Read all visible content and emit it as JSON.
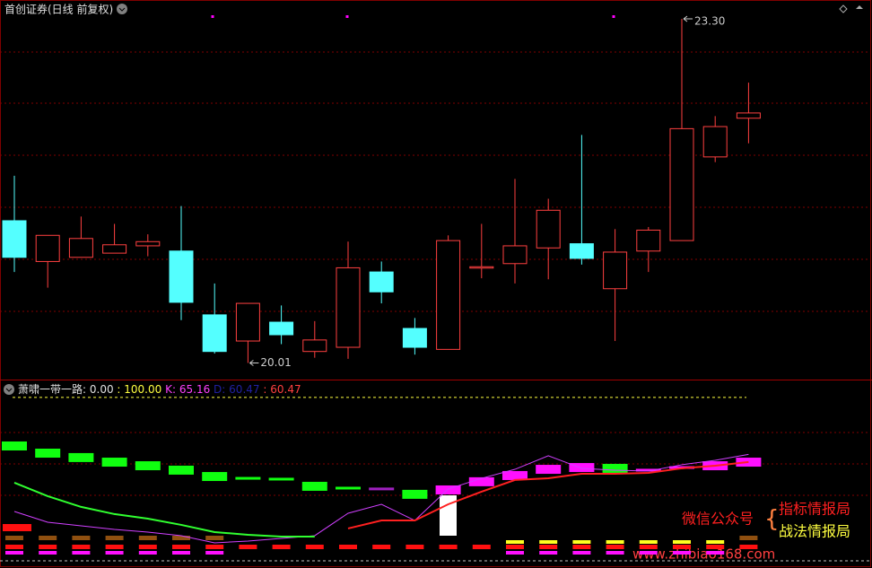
{
  "chart_data": [
    {
      "type": "candlestick",
      "title": "首创证券(日线 前复权)",
      "ylim": [
        19.86,
        23.48
      ],
      "up_color": "#ff4040",
      "down_color": "#54ffff",
      "open": [
        21.37,
        20.98,
        21.02,
        21.06,
        21.13,
        21.08,
        20.47,
        20.22,
        20.4,
        20.12,
        20.16,
        20.88,
        20.34,
        20.14,
        20.92,
        20.96,
        21.11,
        21.15,
        20.72,
        21.08,
        21.18,
        21.98,
        22.35
      ],
      "high": [
        21.8,
        21.23,
        21.41,
        21.34,
        21.24,
        21.51,
        20.77,
        20.58,
        20.56,
        20.41,
        21.17,
        20.98,
        20.44,
        21.23,
        21.34,
        21.77,
        21.58,
        22.19,
        21.29,
        21.31,
        23.3,
        22.37,
        22.69
      ],
      "low": [
        20.88,
        20.73,
        21.02,
        21.06,
        21.03,
        20.42,
        20.1,
        20.01,
        20.19,
        20.06,
        20.05,
        20.58,
        20.09,
        20.14,
        20.82,
        20.77,
        20.81,
        20.95,
        20.22,
        20.88,
        21.18,
        21.93,
        22.11
      ],
      "close": [
        21.02,
        21.23,
        21.2,
        21.14,
        21.17,
        20.59,
        20.12,
        20.58,
        20.28,
        20.23,
        20.92,
        20.69,
        20.16,
        21.18,
        20.93,
        21.13,
        21.47,
        21.01,
        21.07,
        21.28,
        22.25,
        22.27,
        22.4
      ],
      "annotations": [
        {
          "value": 23.3,
          "label": "23.30"
        },
        {
          "value": 20.01,
          "label": "20.01"
        }
      ]
    },
    {
      "type": "line",
      "title": "萧啸一带一路",
      "ylim": [
        -4.4,
        110.4
      ],
      "header": [
        {
          "value": 0,
          "label": ": 0.00"
        },
        {
          "value": 100,
          "label": ": 100.00"
        }
      ],
      "readouts": [
        {
          "name": "K:",
          "value": 65.16,
          "color": "#ff40ff"
        },
        {
          "name": "D:",
          "value": 60.47,
          "color": "#2020a0"
        },
        {
          "name": ":",
          "value": 60.47,
          "color": "#ff4040"
        }
      ],
      "series": [
        {
          "name": "K",
          "color": "#d040ff",
          "values": [
            30.2,
            23.6,
            21.4,
            19.2,
            17.6,
            15.4,
            11.0,
            12.1,
            13.7,
            15.4,
            29.1,
            34.6,
            24.7,
            44.0,
            50.5,
            56.0,
            64.3,
            56.6,
            55.5,
            54.9,
            58.8,
            61.5,
            65.16
          ]
        },
        {
          "name": "D",
          "color": "#ff2020",
          "values": [
            null,
            null,
            null,
            null,
            null,
            null,
            null,
            null,
            null,
            null,
            19.8,
            24.7,
            24.7,
            34.6,
            42.3,
            49.5,
            50.5,
            53.3,
            53.3,
            53.8,
            56.6,
            58.2,
            60.47
          ]
        },
        {
          "name": "G",
          "color": "#30ff30",
          "values": [
            47.8,
            39.6,
            33.0,
            28.6,
            25.8,
            22.0,
            17.6,
            15.9,
            14.8,
            14.8,
            null,
            null,
            null,
            null,
            null,
            null,
            null,
            null,
            null,
            null,
            null,
            null,
            null
          ]
        }
      ],
      "blocks": {
        "values": [
          70.3,
          65.9,
          63.2,
          60.4,
          58.2,
          55.5,
          51.6,
          50.5,
          50.0,
          45.6,
          44.5,
          44.0,
          40.7,
          43.4,
          48.4,
          52.2,
          56.0,
          57.1,
          56.6,
          55.5,
          57.1,
          58.2,
          60.4
        ],
        "colors": [
          "#10ff10",
          "#10ff10",
          "#10ff10",
          "#10ff10",
          "#10ff10",
          "#10ff10",
          "#10ff10",
          "#10ff10",
          "#10ff10",
          "#10ff10",
          "#10ff10",
          "#a020c0",
          "#10ff10",
          "#ff10ff",
          "#ff10ff",
          "#ff10ff",
          "#ff10ff",
          "#ff10ff",
          "#10ff10",
          "#ff10ff",
          "#ff10ff",
          "#ff10ff",
          "#ff10ff"
        ]
      }
    }
  ],
  "watermark": {
    "left": "微信公众号",
    "right1": "指标情报局",
    "right2": "战法情报局",
    "url": "www.zhibiao168.com"
  }
}
